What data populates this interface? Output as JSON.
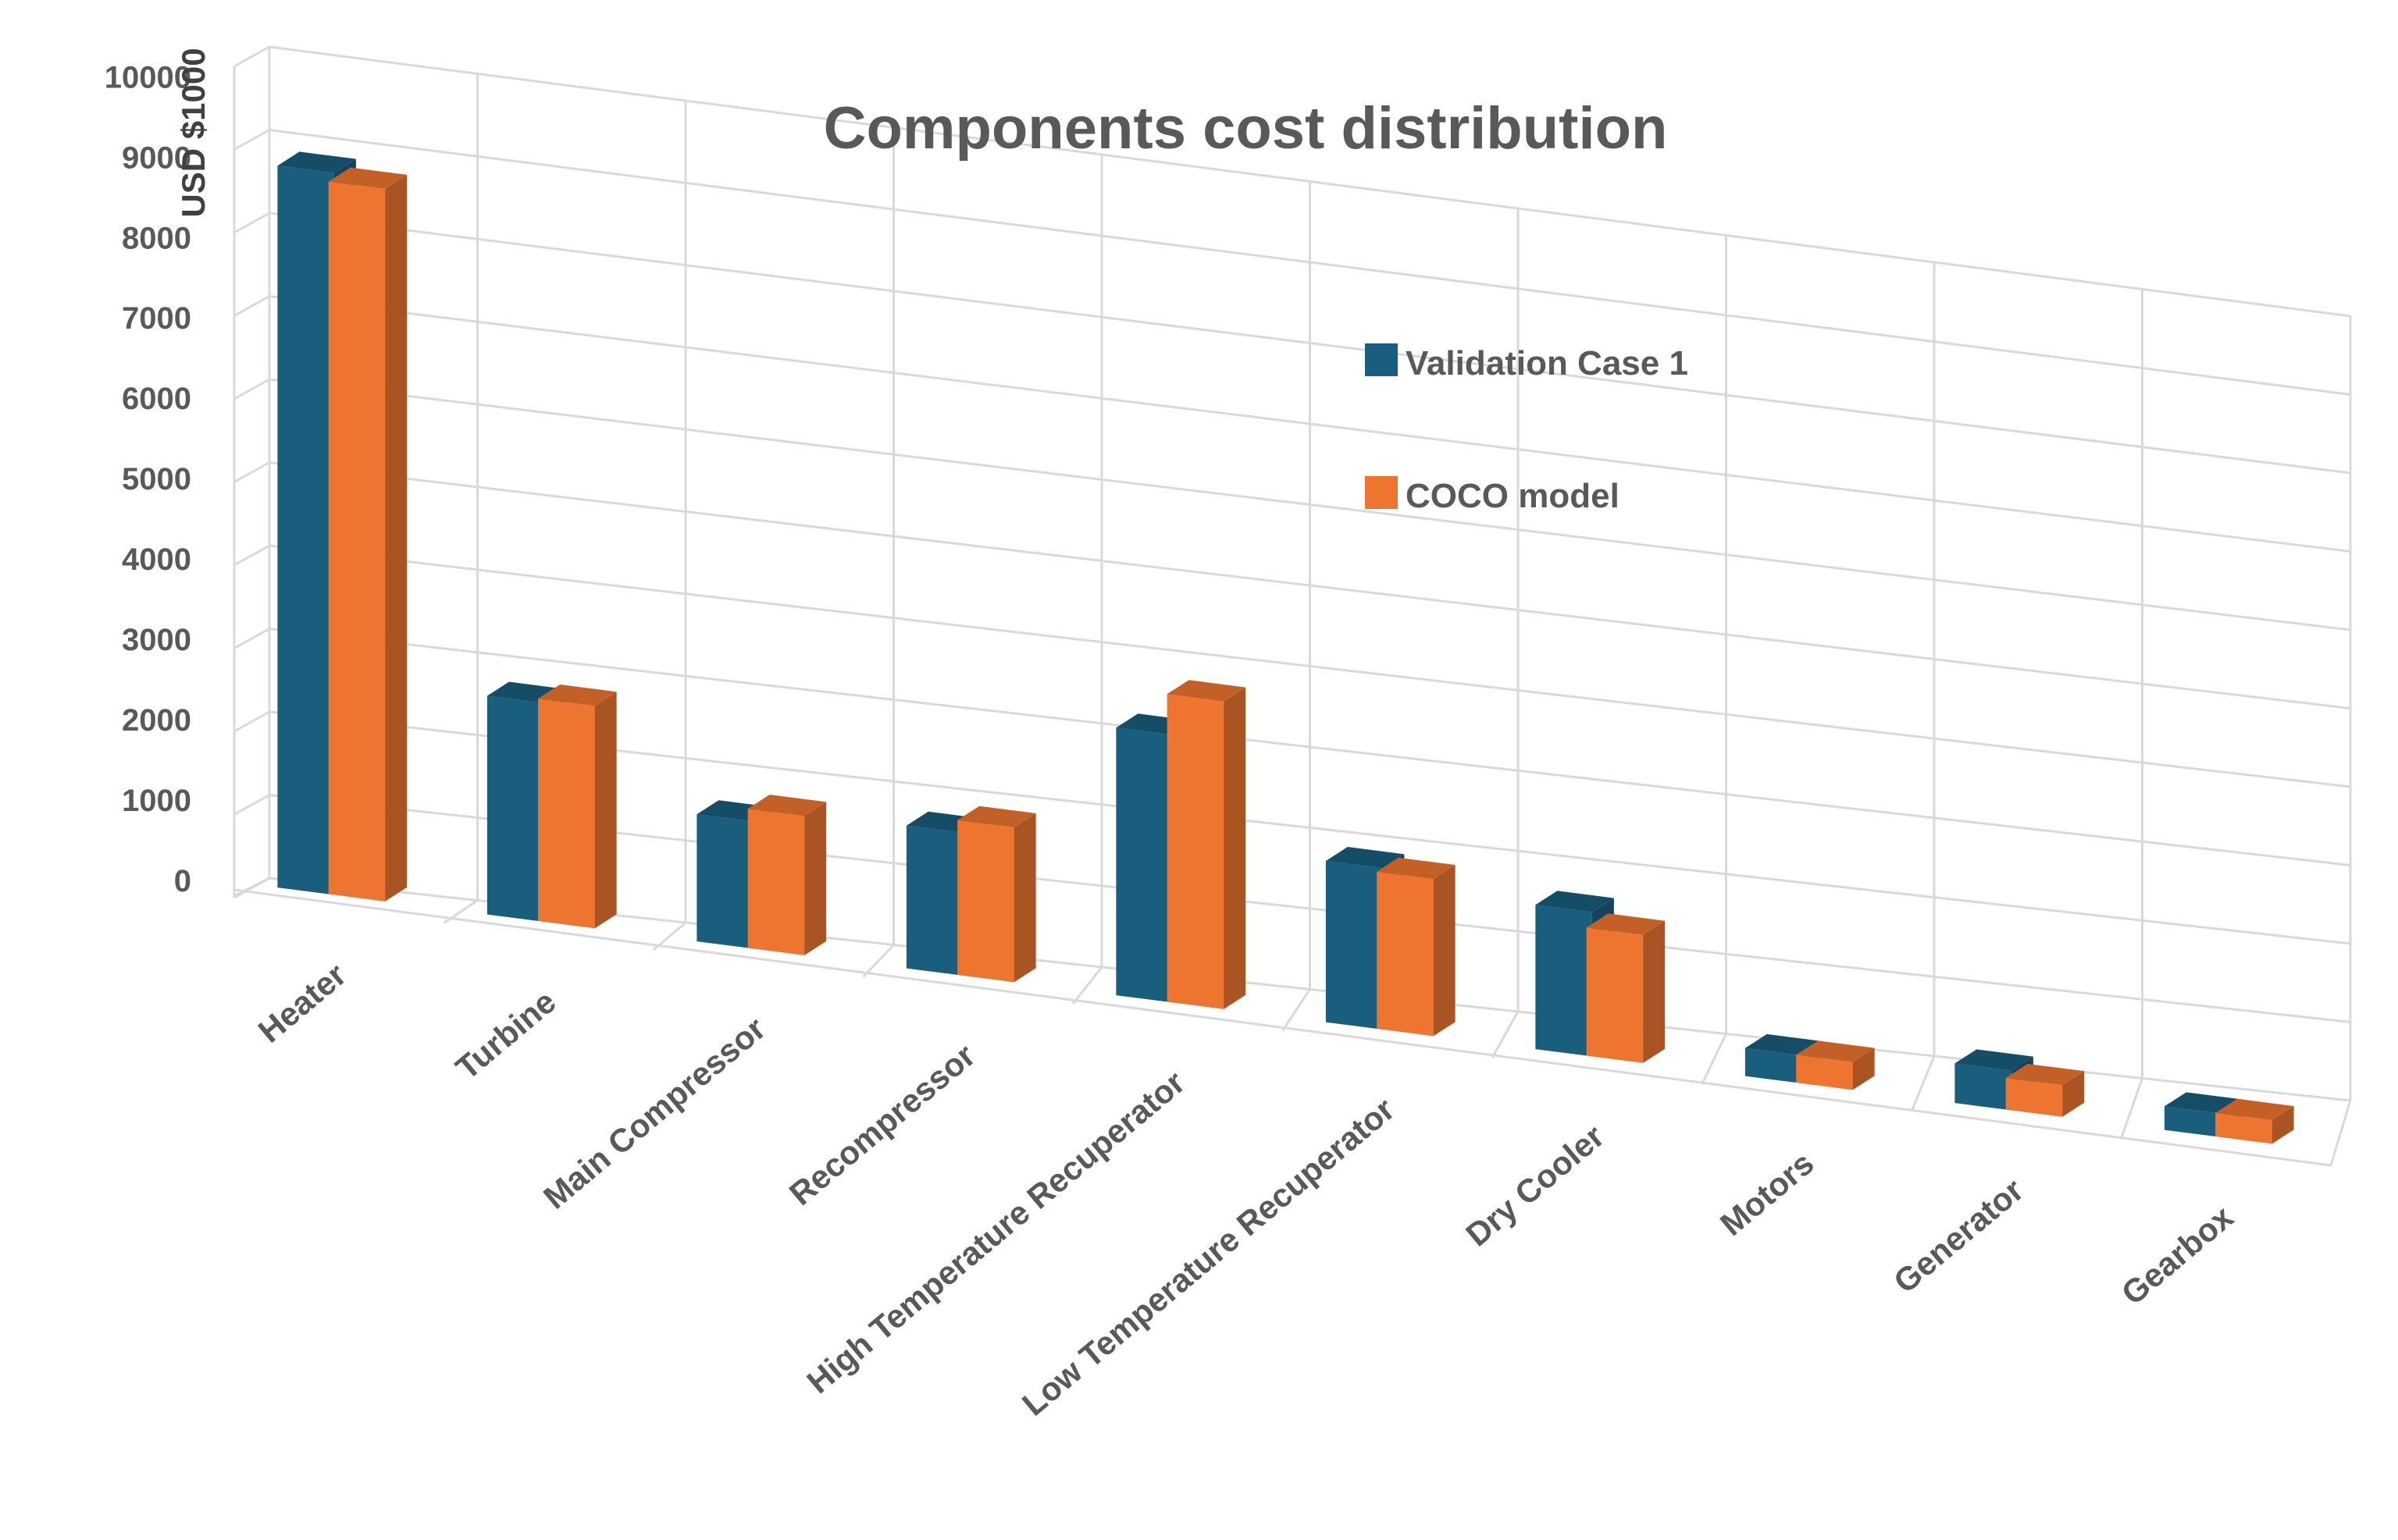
{
  "chart_data": {
    "type": "bar",
    "title": "Components cost distribution",
    "xlabel": "",
    "ylabel": "USD $1000",
    "ylim": [
      0,
      10000
    ],
    "yticks": [
      "0",
      "1000",
      "2000",
      "3000",
      "4000",
      "5000",
      "6000",
      "7000",
      "8000",
      "9000",
      "10000"
    ],
    "categories": [
      "Heater",
      "Turbine",
      "Main Compressor",
      "Recompressor",
      "High Temperature Recuperator",
      "Low Temperature Recuperator",
      "Dry Cooler",
      "Motors",
      "Generator",
      "Gearbox"
    ],
    "series": [
      {
        "name": "Validation Case 1",
        "color": "#1a5e7e",
        "values": [
          8700,
          2650,
          1550,
          1750,
          3300,
          2000,
          1800,
          350,
          500,
          300
        ]
      },
      {
        "name": "COCO model",
        "color": "#ed7530",
        "values": [
          8600,
          2700,
          1700,
          1900,
          3800,
          1950,
          1600,
          350,
          400,
          300
        ]
      }
    ],
    "legend_position": "center-right",
    "grid": true,
    "style": "3d-clustered-column"
  }
}
